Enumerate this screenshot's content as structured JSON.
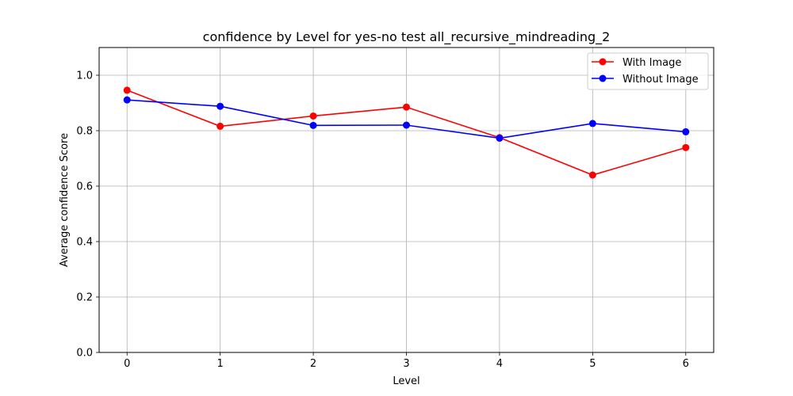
{
  "chart_data": {
    "type": "line",
    "title": "confidence by Level for yes-no test all_recursive_mindreading_2",
    "xlabel": "Level",
    "ylabel": "Average confidence Score",
    "x": [
      0,
      1,
      2,
      3,
      4,
      5,
      6
    ],
    "x_ticks": [
      "0",
      "1",
      "2",
      "3",
      "4",
      "5",
      "6"
    ],
    "xlim": [
      -0.3,
      6.3
    ],
    "ylim": [
      0.0,
      1.1
    ],
    "y_ticks": [
      "0.0",
      "0.2",
      "0.4",
      "0.6",
      "0.8",
      "1.0"
    ],
    "grid": true,
    "legend_position": "top-right",
    "series": [
      {
        "name": "With Image",
        "color": "#ff0000",
        "marker": "circle",
        "values": [
          0.946,
          0.816,
          0.853,
          0.885,
          0.775,
          0.64,
          0.739
        ]
      },
      {
        "name": "Without Image",
        "color": "#0000ff",
        "marker": "circle",
        "values": [
          0.911,
          0.888,
          0.819,
          0.82,
          0.773,
          0.826,
          0.796
        ]
      }
    ]
  }
}
